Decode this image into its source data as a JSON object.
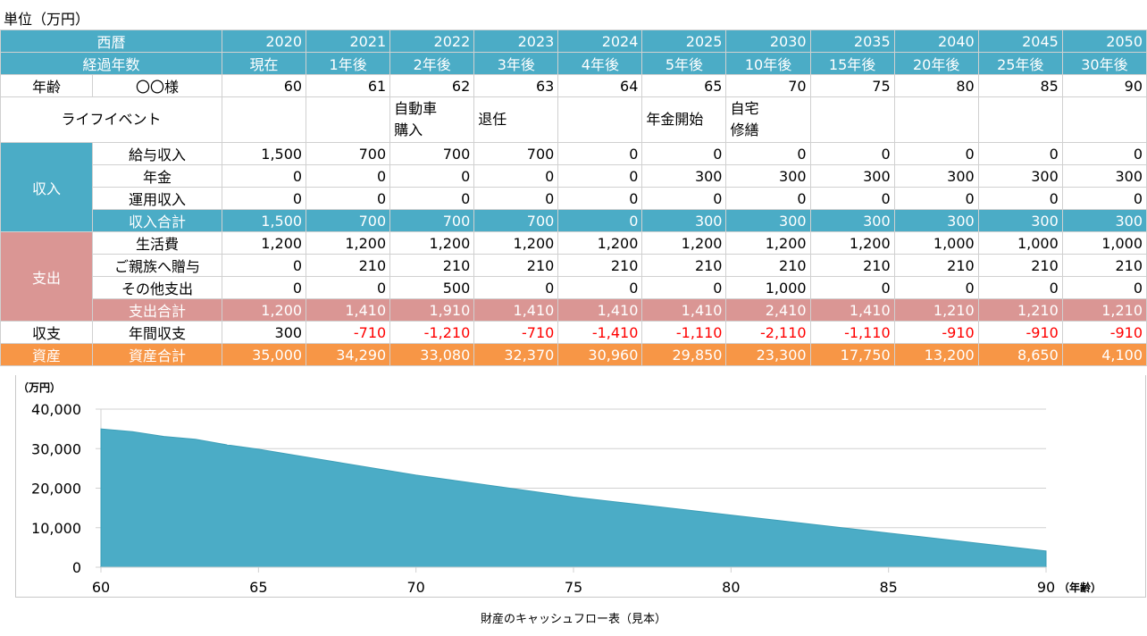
{
  "unit_label": "単位（万円）",
  "header": {
    "year_label": "西暦",
    "elapsed_label": "経過年数",
    "years": [
      "2020",
      "2021",
      "2022",
      "2023",
      "2024",
      "2025",
      "2030",
      "2035",
      "2040",
      "2045",
      "2050"
    ],
    "elapsed": [
      "現在",
      "1年後",
      "2年後",
      "3年後",
      "4年後",
      "5年後",
      "10年後",
      "15年後",
      "20年後",
      "25年後",
      "30年後"
    ]
  },
  "age_row": {
    "label": "年齢",
    "name": "〇〇様",
    "values": [
      "60",
      "61",
      "62",
      "63",
      "64",
      "65",
      "70",
      "75",
      "80",
      "85",
      "90"
    ]
  },
  "life_event_row": {
    "label": "ライフイベント",
    "values": [
      "",
      "",
      "自動車\n購入",
      "退任",
      "",
      "年金開始",
      "自宅\n修繕",
      "",
      "",
      "",
      ""
    ]
  },
  "income": {
    "label": "収入",
    "rows": [
      {
        "label": "給与収入",
        "values": [
          "1,500",
          "700",
          "700",
          "700",
          "0",
          "0",
          "0",
          "0",
          "0",
          "0",
          "0"
        ]
      },
      {
        "label": "年金",
        "values": [
          "0",
          "0",
          "0",
          "0",
          "0",
          "300",
          "300",
          "300",
          "300",
          "300",
          "300"
        ]
      },
      {
        "label": "運用収入",
        "values": [
          "0",
          "0",
          "0",
          "0",
          "0",
          "0",
          "0",
          "0",
          "0",
          "0",
          "0"
        ]
      }
    ],
    "total": {
      "label": "収入合計",
      "values": [
        "1,500",
        "700",
        "700",
        "700",
        "0",
        "300",
        "300",
        "300",
        "300",
        "300",
        "300"
      ]
    }
  },
  "expense": {
    "label": "支出",
    "rows": [
      {
        "label": "生活費",
        "values": [
          "1,200",
          "1,200",
          "1,200",
          "1,200",
          "1,200",
          "1,200",
          "1,200",
          "1,200",
          "1,000",
          "1,000",
          "1,000"
        ]
      },
      {
        "label": "ご親族へ贈与",
        "values": [
          "0",
          "210",
          "210",
          "210",
          "210",
          "210",
          "210",
          "210",
          "210",
          "210",
          "210"
        ]
      },
      {
        "label": "その他支出",
        "values": [
          "0",
          "0",
          "500",
          "0",
          "0",
          "0",
          "1,000",
          "0",
          "0",
          "0",
          "0"
        ]
      }
    ],
    "total": {
      "label": "支出合計",
      "values": [
        "1,200",
        "1,410",
        "1,910",
        "1,410",
        "1,410",
        "1,410",
        "2,410",
        "1,410",
        "1,210",
        "1,210",
        "1,210"
      ]
    }
  },
  "balance": {
    "label": "収支",
    "sub": "年間収支",
    "values": [
      "300",
      "-710",
      "-1,210",
      "-710",
      "-1,410",
      "-1,110",
      "-2,110",
      "-1,110",
      "-910",
      "-910",
      "-910"
    ]
  },
  "assets": {
    "label": "資産",
    "sub": "資産合計",
    "values": [
      "35,000",
      "34,290",
      "33,080",
      "32,370",
      "30,960",
      "29,850",
      "23,300",
      "17,750",
      "13,200",
      "8,650",
      "4,100"
    ]
  },
  "colors": {
    "blue": "#4BACC6",
    "pink": "#DA9694",
    "orange": "#F79646",
    "negative": "#FF0000"
  },
  "chart_data": {
    "type": "area",
    "x": [
      60,
      61,
      62,
      63,
      64,
      65,
      70,
      75,
      80,
      85,
      90
    ],
    "values": [
      35000,
      34290,
      33080,
      32370,
      30960,
      29850,
      23300,
      17750,
      13200,
      8650,
      4100
    ],
    "ylabel": "（万円）",
    "xlabel": "（年齢）",
    "ylim": [
      0,
      40000
    ],
    "xlim": [
      60,
      90
    ],
    "yticks": [
      "0",
      "10,000",
      "20,000",
      "30,000",
      "40,000"
    ],
    "xticks": [
      "60",
      "65",
      "70",
      "75",
      "80",
      "85",
      "90"
    ],
    "grid": true,
    "title": "財産のキャッシュフロー表（見本）"
  }
}
